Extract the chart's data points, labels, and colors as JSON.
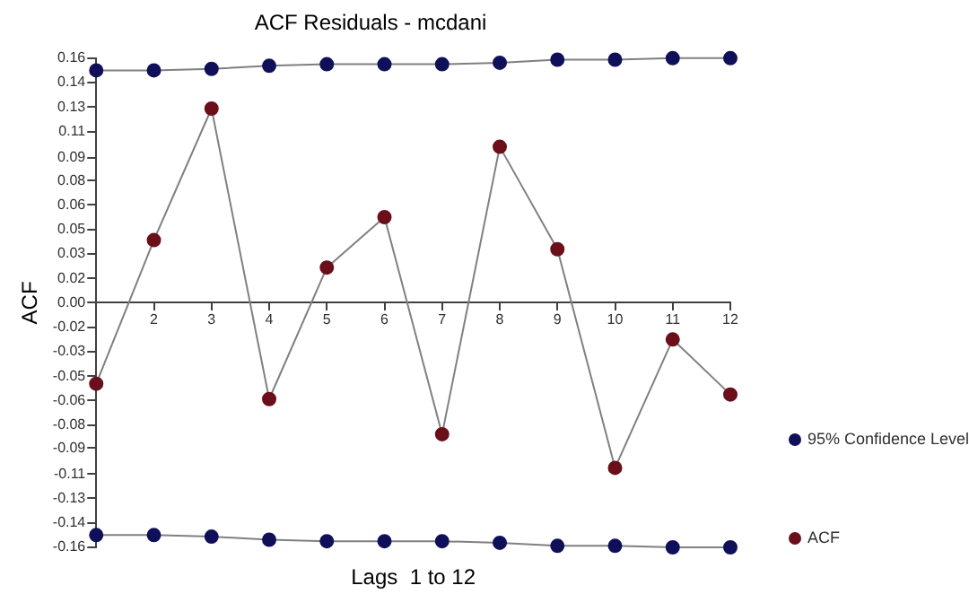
{
  "chart_data": {
    "type": "line",
    "title": "ACF Residuals - mcdani",
    "xlabel": "Lags  1 to 12",
    "ylabel": "ACF",
    "categories": [
      null,
      "2",
      "3",
      "4",
      "5",
      "6",
      "7",
      "8",
      "9",
      "10",
      "11",
      "12"
    ],
    "series": [
      {
        "name": "95% Confidence Level",
        "color": "#10105a",
        "values": [
          0.152,
          0.152,
          0.153,
          0.155,
          0.156,
          0.156,
          0.156,
          0.157,
          0.159,
          0.159,
          0.16,
          0.16
        ]
      },
      {
        "color": "#10105a",
        "values": [
          -0.152,
          -0.152,
          -0.153,
          -0.155,
          -0.156,
          -0.156,
          -0.156,
          -0.157,
          -0.159,
          -0.159,
          -0.16,
          -0.16
        ]
      },
      {
        "name": "ACF",
        "color": "#6b0f1a",
        "values": [
          -0.053,
          0.041,
          0.127,
          -0.063,
          0.023,
          0.056,
          -0.086,
          0.102,
          0.035,
          -0.108,
          -0.024,
          -0.06
        ]
      }
    ],
    "ylim": [
      -0.16,
      0.16
    ],
    "yticks": [
      {
        "value": -0.16,
        "label": "-0.16"
      },
      {
        "value": -0.144,
        "label": "-0.14"
      },
      {
        "value": -0.128,
        "label": "-0.13"
      },
      {
        "value": -0.112,
        "label": "-0.11"
      },
      {
        "value": -0.095,
        "label": "-0.09"
      },
      {
        "value": -0.08,
        "label": "-0.08"
      },
      {
        "value": -0.064,
        "label": "-0.06"
      },
      {
        "value": -0.048,
        "label": "-0.05"
      },
      {
        "value": -0.032,
        "label": "-0.03"
      },
      {
        "value": -0.016,
        "label": "-0.02"
      },
      {
        "value": 0,
        "label": "0.00"
      },
      {
        "value": 0.016,
        "label": "0.02"
      },
      {
        "value": 0.032,
        "label": "0.03"
      },
      {
        "value": 0.048,
        "label": "0.05"
      },
      {
        "value": 0.064,
        "label": "0.06"
      },
      {
        "value": 0.08,
        "label": "0.08"
      },
      {
        "value": 0.095,
        "label": "0.09"
      },
      {
        "value": 0.112,
        "label": "0.11"
      },
      {
        "value": 0.128,
        "label": "0.13"
      },
      {
        "value": 0.144,
        "label": "0.14"
      },
      {
        "value": 0.16,
        "label": "0.16"
      }
    ],
    "grid": false,
    "legend": "right",
    "marker": "circle",
    "line_style": "solid"
  }
}
